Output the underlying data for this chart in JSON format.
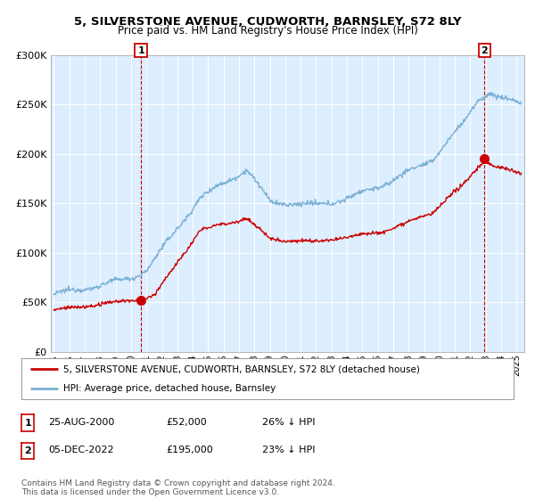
{
  "title": "5, SILVERSTONE AVENUE, CUDWORTH, BARNSLEY, S72 8LY",
  "subtitle": "Price paid vs. HM Land Registry's House Price Index (HPI)",
  "xlim": [
    1994.8,
    2025.5
  ],
  "ylim": [
    0,
    300000
  ],
  "yticks": [
    0,
    50000,
    100000,
    150000,
    200000,
    250000,
    300000
  ],
  "ytick_labels": [
    "£0",
    "£50K",
    "£100K",
    "£150K",
    "£200K",
    "£250K",
    "£300K"
  ],
  "xtick_years": [
    1995,
    1996,
    1997,
    1998,
    1999,
    2000,
    2001,
    2002,
    2003,
    2004,
    2005,
    2006,
    2007,
    2008,
    2009,
    2010,
    2011,
    2012,
    2013,
    2014,
    2015,
    2016,
    2017,
    2018,
    2019,
    2020,
    2021,
    2022,
    2023,
    2024,
    2025
  ],
  "sale1_x": 2000.646,
  "sale1_y": 52000,
  "sale1_label": "1",
  "sale2_x": 2022.923,
  "sale2_y": 195000,
  "sale2_label": "2",
  "red_line_color": "#cc0000",
  "blue_line_color": "#7ab0d4",
  "vline_color": "#cc0000",
  "bg_fill_color": "#ddeeff",
  "background_color": "#ffffff",
  "grid_color": "#cccccc",
  "legend_label1": "5, SILVERSTONE AVENUE, CUDWORTH, BARNSLEY, S72 8LY (detached house)",
  "legend_label2": "HPI: Average price, detached house, Barnsley",
  "table_row1": [
    "1",
    "25-AUG-2000",
    "£52,000",
    "26% ↓ HPI"
  ],
  "table_row2": [
    "2",
    "05-DEC-2022",
    "£195,000",
    "23% ↓ HPI"
  ],
  "footer": "Contains HM Land Registry data © Crown copyright and database right 2024.\nThis data is licensed under the Open Government Licence v3.0.",
  "title_fontsize": 9.5,
  "subtitle_fontsize": 8.5
}
